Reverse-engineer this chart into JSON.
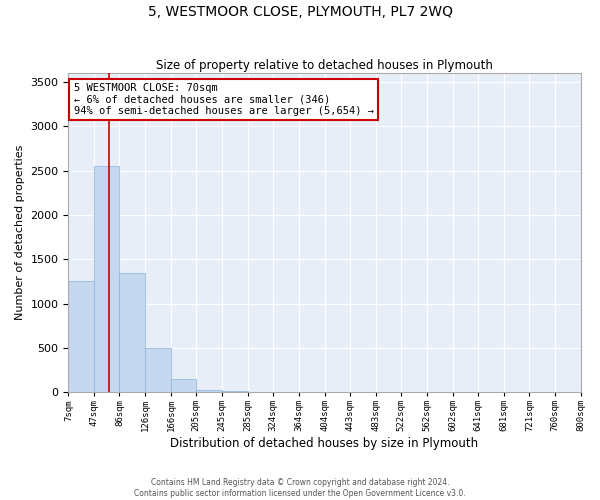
{
  "title": "5, WESTMOOR CLOSE, PLYMOUTH, PL7 2WQ",
  "subtitle": "Size of property relative to detached houses in Plymouth",
  "xlabel": "Distribution of detached houses by size in Plymouth",
  "ylabel": "Number of detached properties",
  "bin_edges": [
    7,
    47,
    86,
    126,
    166,
    205,
    245,
    285,
    324,
    364,
    404,
    443,
    483,
    522,
    562,
    602,
    641,
    681,
    721,
    760,
    800
  ],
  "bar_heights": [
    1250,
    2550,
    1350,
    500,
    150,
    30,
    15,
    8,
    4,
    2,
    2,
    1,
    1,
    1,
    0,
    0,
    0,
    0,
    0,
    0
  ],
  "bar_color": "#c5d8f0",
  "bar_edge_color": "#8ab4d8",
  "property_size": 70,
  "vline_color": "#cc0000",
  "annotation_text": "5 WESTMOOR CLOSE: 70sqm\n← 6% of detached houses are smaller (346)\n94% of semi-detached houses are larger (5,654) →",
  "annotation_box_color": "#cc0000",
  "ylim": [
    0,
    3600
  ],
  "yticks": [
    0,
    500,
    1000,
    1500,
    2000,
    2500,
    3000,
    3500
  ],
  "background_color": "#e8eef8",
  "grid_color": "#ffffff",
  "tick_labels": [
    "7sqm",
    "47sqm",
    "86sqm",
    "126sqm",
    "166sqm",
    "205sqm",
    "245sqm",
    "285sqm",
    "324sqm",
    "364sqm",
    "404sqm",
    "443sqm",
    "483sqm",
    "522sqm",
    "562sqm",
    "602sqm",
    "641sqm",
    "681sqm",
    "721sqm",
    "760sqm",
    "800sqm"
  ],
  "footer_line1": "Contains HM Land Registry data © Crown copyright and database right 2024.",
  "footer_line2": "Contains public sector information licensed under the Open Government Licence v3.0."
}
